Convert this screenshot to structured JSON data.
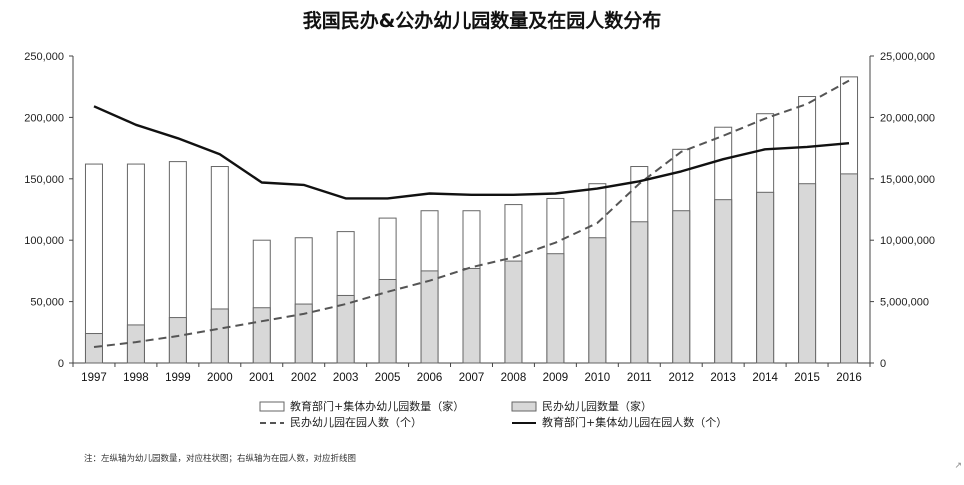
{
  "title": "我国民办&公办幼儿园数量及在园人数分布",
  "note": "注：左纵轴为幼儿园数量，对应柱状图；右纵轴为在园人数，对应折线图",
  "corner_mark": "↗",
  "chart_data": {
    "type": "bar",
    "title": "我国民办&公办幼儿园数量及在园人数分布",
    "categories": [
      "1997",
      "1998",
      "1999",
      "2000",
      "2001",
      "2002",
      "2003",
      "2005",
      "2006",
      "2007",
      "2008",
      "2009",
      "2010",
      "2011",
      "2012",
      "2013",
      "2014",
      "2015",
      "2016"
    ],
    "left_axis": {
      "ylim": [
        0,
        250000
      ],
      "ticks": [
        "0",
        "50,000",
        "100,000",
        "150,000",
        "200,000",
        "250,000"
      ]
    },
    "right_axis": {
      "ylim": [
        0,
        25000000
      ],
      "ticks": [
        "0",
        "5,000,000",
        "10,000,000",
        "15,000,000",
        "20,000,000",
        "25,000,000"
      ]
    },
    "grid": false,
    "legend_position": "bottom",
    "series": [
      {
        "name": "教育部门+集体办幼儿园数量（家）",
        "kind": "bar",
        "axis": "left",
        "fill": "#ffffff",
        "stroke": "#666666",
        "values": [
          162000,
          162000,
          164000,
          160000,
          100000,
          102000,
          107000,
          118000,
          124000,
          124000,
          129000,
          134000,
          146000,
          160000,
          174000,
          192000,
          203000,
          217000,
          233000
        ]
      },
      {
        "name": "民办幼儿园数量（家）",
        "kind": "bar",
        "axis": "left",
        "fill": "#d8d8d8",
        "stroke": "#666666",
        "values": [
          24000,
          31000,
          37000,
          44000,
          45000,
          48000,
          55000,
          68000,
          75000,
          77000,
          83000,
          89000,
          102000,
          115000,
          124000,
          133000,
          139000,
          146000,
          154000
        ]
      },
      {
        "name": "民办幼儿园在园人数（个）",
        "kind": "line",
        "axis": "right",
        "color": "#555555",
        "dash": true,
        "values": [
          1300000,
          1700000,
          2200000,
          2800000,
          3400000,
          4000000,
          4800000,
          5800000,
          6700000,
          7800000,
          8600000,
          9800000,
          11400000,
          14600000,
          17200000,
          18500000,
          19900000,
          21100000,
          23000000
        ]
      },
      {
        "name": "教育部门+集体幼儿园在园人数（个）",
        "kind": "line",
        "axis": "right",
        "color": "#111111",
        "dash": false,
        "values": [
          20900000,
          19400000,
          18300000,
          17000000,
          14700000,
          14500000,
          13400000,
          13400000,
          13800000,
          13700000,
          13700000,
          13800000,
          14200000,
          14800000,
          15600000,
          16600000,
          17400000,
          17600000,
          17900000
        ]
      }
    ]
  }
}
